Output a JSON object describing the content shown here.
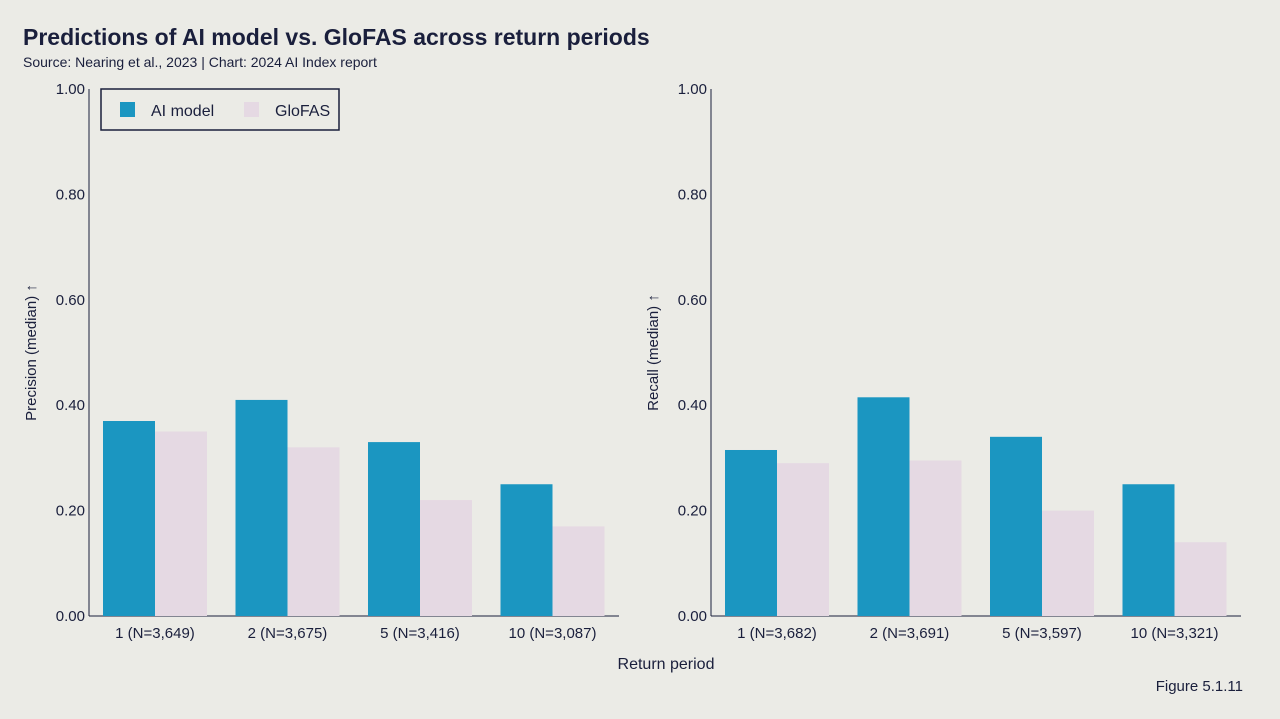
{
  "title": "Predictions of AI model vs. GloFAS across return periods",
  "subtitle": "Source: Nearing et al., 2023 | Chart: 2024 AI Index report",
  "figure_label": "Figure 5.1.11",
  "chart_data": [
    {
      "type": "bar",
      "ylabel": "Precision (median) ↑",
      "xlabel": "Return period",
      "ylim": [
        0,
        1
      ],
      "yticks": [
        "0.00",
        "0.20",
        "0.40",
        "0.60",
        "0.80",
        "1.00"
      ],
      "categories": [
        "1 (N=3,649)",
        "2 (N=3,675)",
        "5 (N=3,416)",
        "10 (N=3,087)"
      ],
      "series": [
        {
          "name": "AI model",
          "color": "#1b96c1",
          "values": [
            0.37,
            0.41,
            0.33,
            0.25
          ]
        },
        {
          "name": "GloFAS",
          "color": "#e5d9e3",
          "values": [
            0.35,
            0.32,
            0.22,
            0.17
          ]
        }
      ],
      "legend": {
        "position": "top-left",
        "items": [
          "AI model",
          "GloFAS"
        ]
      }
    },
    {
      "type": "bar",
      "ylabel": "Recall (median) ↑",
      "xlabel": "Return period",
      "ylim": [
        0,
        1
      ],
      "yticks": [
        "0.00",
        "0.20",
        "0.40",
        "0.60",
        "0.80",
        "1.00"
      ],
      "categories": [
        "1 (N=3,682)",
        "2 (N=3,691)",
        "5 (N=3,597)",
        "10 (N=3,321)"
      ],
      "series": [
        {
          "name": "AI model",
          "color": "#1b96c1",
          "values": [
            0.315,
            0.415,
            0.34,
            0.25
          ]
        },
        {
          "name": "GloFAS",
          "color": "#e5d9e3",
          "values": [
            0.29,
            0.295,
            0.2,
            0.14
          ]
        }
      ]
    }
  ]
}
